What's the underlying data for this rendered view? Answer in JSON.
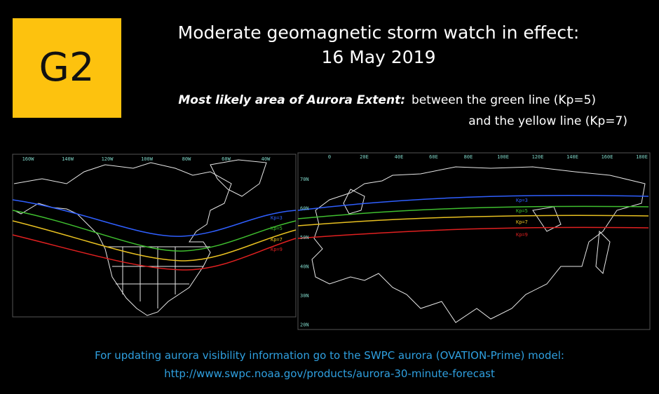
{
  "badge": "G2",
  "title": [
    "Moderate geomagnetic storm watch in effect:",
    "16 May 2019"
  ],
  "subtitle": {
    "emphasis": "Most likely area of Aurora Extent:",
    "line1": "between the green line (Kp=5)",
    "line2": "and the yellow line (Kp=7)"
  },
  "maps": [
    {
      "longitudes": [
        "160W",
        "140W",
        "120W",
        "100W",
        "80W",
        "60W",
        "40W"
      ],
      "latitudes": [],
      "kp_labels": [
        "Kp=3",
        "Kp=5",
        "Kp=7",
        "Kp=9"
      ]
    },
    {
      "longitudes": [
        "0",
        "20E",
        "40E",
        "60E",
        "80E",
        "100E",
        "120E",
        "140E",
        "160E",
        "180E"
      ],
      "latitudes": [
        "70N",
        "60N",
        "50N",
        "40N",
        "30N",
        "20N"
      ],
      "kp_labels": [
        "Kp=3",
        "Kp=5",
        "Kp=7",
        "Kp=9"
      ]
    }
  ],
  "footer": [
    "For updating aurora visibility information go to the SWPC aurora (OVATION-Prime) model:",
    "http://www.swpc.noaa.gov/products/aurora-30-minute-forecast"
  ]
}
